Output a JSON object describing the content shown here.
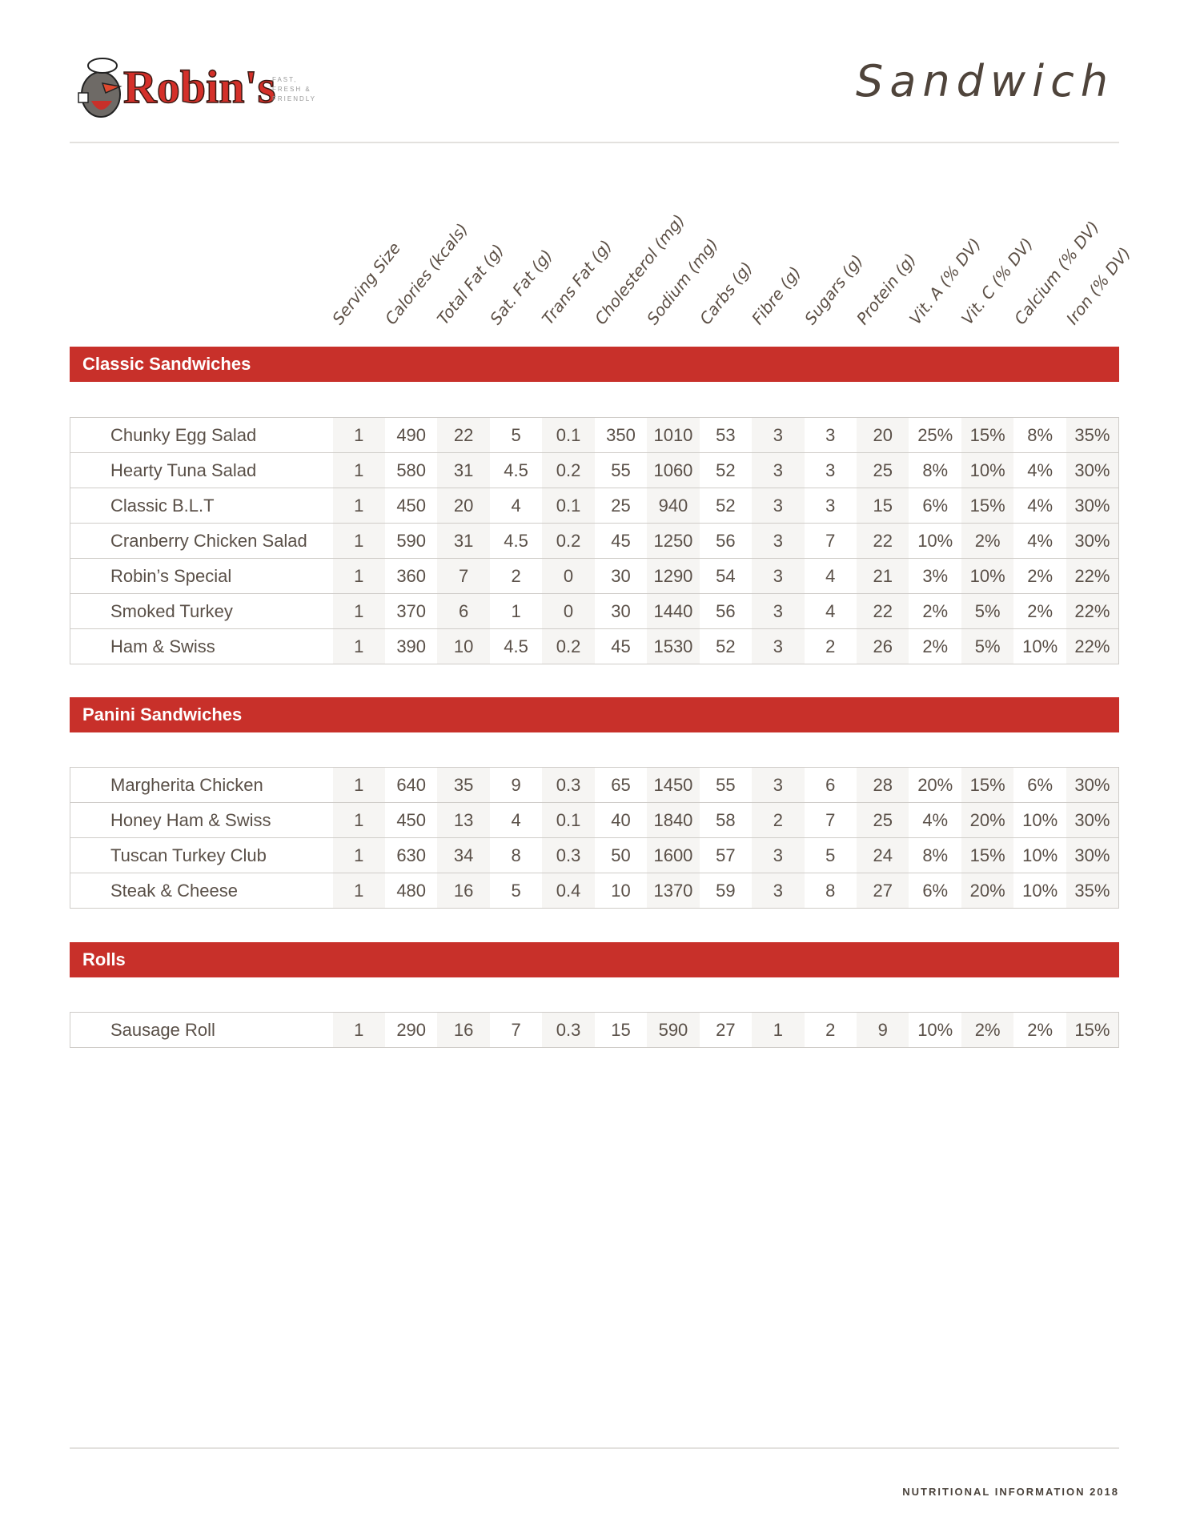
{
  "brand": {
    "logo_text": "Robin's",
    "tagline": [
      "FAST,",
      "FRESH &",
      "FRIENDLY"
    ],
    "accent_color": "#c8302a"
  },
  "page_title": "Sandwich",
  "columns": [
    "Serving Size",
    "Calories (kcals)",
    "Total Fat (g)",
    "Sat. Fat (g)",
    "Trans Fat (g)",
    "Cholesterol (mg)",
    "Sodium (mg)",
    "Carbs (g)",
    "Fibre (g)",
    "Sugars (g)",
    "Protein (g)",
    "Vit. A (% DV)",
    "Vit. C (% DV)",
    "Calcium (% DV)",
    "Iron (% DV)"
  ],
  "sections": [
    {
      "title": "Classic Sandwiches",
      "rows": [
        {
          "name": "Chunky Egg Salad",
          "values": [
            "1",
            "490",
            "22",
            "5",
            "0.1",
            "350",
            "1010",
            "53",
            "3",
            "3",
            "20",
            "25%",
            "15%",
            "8%",
            "35%"
          ]
        },
        {
          "name": "Hearty Tuna Salad",
          "values": [
            "1",
            "580",
            "31",
            "4.5",
            "0.2",
            "55",
            "1060",
            "52",
            "3",
            "3",
            "25",
            "8%",
            "10%",
            "4%",
            "30%"
          ]
        },
        {
          "name": "Classic B.L.T",
          "values": [
            "1",
            "450",
            "20",
            "4",
            "0.1",
            "25",
            "940",
            "52",
            "3",
            "3",
            "15",
            "6%",
            "15%",
            "4%",
            "30%"
          ]
        },
        {
          "name": "Cranberry Chicken Salad",
          "values": [
            "1",
            "590",
            "31",
            "4.5",
            "0.2",
            "45",
            "1250",
            "56",
            "3",
            "7",
            "22",
            "10%",
            "2%",
            "4%",
            "30%"
          ]
        },
        {
          "name": "Robin’s Special",
          "values": [
            "1",
            "360",
            "7",
            "2",
            "0",
            "30",
            "1290",
            "54",
            "3",
            "4",
            "21",
            "3%",
            "10%",
            "2%",
            "22%"
          ]
        },
        {
          "name": "Smoked Turkey",
          "values": [
            "1",
            "370",
            "6",
            "1",
            "0",
            "30",
            "1440",
            "56",
            "3",
            "4",
            "22",
            "2%",
            "5%",
            "2%",
            "22%"
          ]
        },
        {
          "name": "Ham & Swiss",
          "values": [
            "1",
            "390",
            "10",
            "4.5",
            "0.2",
            "45",
            "1530",
            "52",
            "3",
            "2",
            "26",
            "2%",
            "5%",
            "10%",
            "22%"
          ]
        }
      ]
    },
    {
      "title": "Panini Sandwiches",
      "rows": [
        {
          "name": "Margherita Chicken",
          "values": [
            "1",
            "640",
            "35",
            "9",
            "0.3",
            "65",
            "1450",
            "55",
            "3",
            "6",
            "28",
            "20%",
            "15%",
            "6%",
            "30%"
          ]
        },
        {
          "name": "Honey Ham & Swiss",
          "values": [
            "1",
            "450",
            "13",
            "4",
            "0.1",
            "40",
            "1840",
            "58",
            "2",
            "7",
            "25",
            "4%",
            "20%",
            "10%",
            "30%"
          ]
        },
        {
          "name": "Tuscan Turkey Club",
          "values": [
            "1",
            "630",
            "34",
            "8",
            "0.3",
            "50",
            "1600",
            "57",
            "3",
            "5",
            "24",
            "8%",
            "15%",
            "10%",
            "30%"
          ]
        },
        {
          "name": "Steak & Cheese",
          "values": [
            "1",
            "480",
            "16",
            "5",
            "0.4",
            "10",
            "1370",
            "59",
            "3",
            "8",
            "27",
            "6%",
            "20%",
            "10%",
            "35%"
          ]
        }
      ]
    },
    {
      "title": "Rolls",
      "rows": [
        {
          "name": "Sausage Roll",
          "values": [
            "1",
            "290",
            "16",
            "7",
            "0.3",
            "15",
            "590",
            "27",
            "1",
            "2",
            "9",
            "10%",
            "2%",
            "2%",
            "15%"
          ]
        }
      ]
    }
  ],
  "footer": "NUTRITIONAL INFORMATION 2018"
}
